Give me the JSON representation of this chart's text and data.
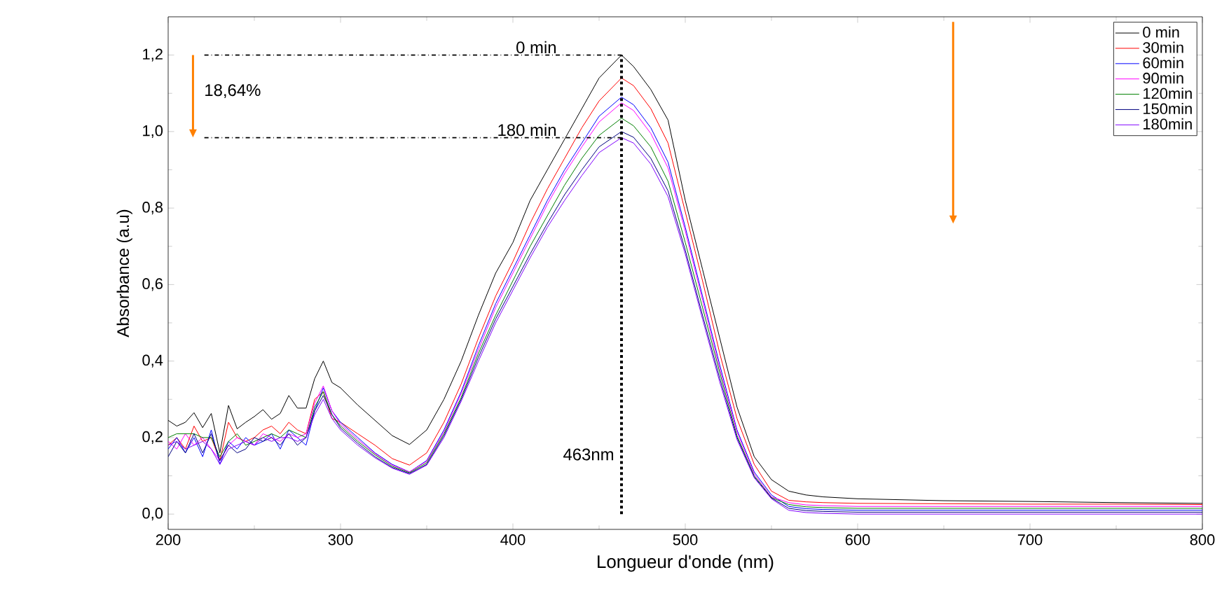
{
  "chart_data": {
    "type": "line",
    "xlabel": "Longueur d'onde (nm)",
    "ylabel": "Absorbance (a.u)",
    "x": [
      200,
      205,
      210,
      215,
      220,
      225,
      230,
      235,
      240,
      245,
      250,
      255,
      260,
      265,
      270,
      275,
      280,
      285,
      290,
      295,
      300,
      310,
      320,
      330,
      340,
      350,
      360,
      370,
      380,
      390,
      400,
      410,
      420,
      430,
      440,
      450,
      463,
      470,
      480,
      490,
      500,
      510,
      520,
      530,
      540,
      550,
      560,
      570,
      580,
      600,
      650,
      700,
      750,
      800
    ],
    "series": [
      {
        "name": "0 min",
        "color": "#000000",
        "values": [
          0.245,
          0.23,
          0.24,
          0.265,
          0.226,
          0.263,
          0.16,
          0.284,
          0.223,
          0.24,
          0.255,
          0.273,
          0.248,
          0.263,
          0.31,
          0.277,
          0.277,
          0.354,
          0.4,
          0.344,
          0.33,
          0.285,
          0.245,
          0.205,
          0.182,
          0.22,
          0.3,
          0.4,
          0.52,
          0.63,
          0.71,
          0.82,
          0.9,
          0.98,
          1.06,
          1.14,
          1.2,
          1.17,
          1.11,
          1.03,
          0.82,
          0.64,
          0.46,
          0.28,
          0.15,
          0.09,
          0.06,
          0.05,
          0.045,
          0.04,
          0.035,
          0.033,
          0.03,
          0.028
        ]
      },
      {
        "name": "30min",
        "color": "#ff0000",
        "values": [
          0.18,
          0.2,
          0.17,
          0.23,
          0.19,
          0.2,
          0.14,
          0.24,
          0.2,
          0.19,
          0.2,
          0.22,
          0.23,
          0.21,
          0.24,
          0.22,
          0.21,
          0.3,
          0.32,
          0.25,
          0.24,
          0.21,
          0.18,
          0.145,
          0.128,
          0.16,
          0.24,
          0.34,
          0.46,
          0.57,
          0.66,
          0.76,
          0.85,
          0.93,
          1.01,
          1.08,
          1.14,
          1.12,
          1.06,
          0.97,
          0.79,
          0.61,
          0.42,
          0.25,
          0.13,
          0.06,
          0.036,
          0.032,
          0.03,
          0.028,
          0.027,
          0.026,
          0.026,
          0.025
        ]
      },
      {
        "name": "60min",
        "color": "#0000ff",
        "values": [
          0.17,
          0.2,
          0.16,
          0.2,
          0.15,
          0.22,
          0.13,
          0.19,
          0.17,
          0.2,
          0.18,
          0.19,
          0.21,
          0.17,
          0.22,
          0.2,
          0.18,
          0.27,
          0.33,
          0.27,
          0.24,
          0.2,
          0.16,
          0.13,
          0.11,
          0.14,
          0.22,
          0.32,
          0.44,
          0.55,
          0.64,
          0.73,
          0.82,
          0.9,
          0.97,
          1.04,
          1.09,
          1.07,
          1.01,
          0.92,
          0.75,
          0.57,
          0.39,
          0.22,
          0.11,
          0.05,
          0.02,
          0.014,
          0.012,
          0.01,
          0.01,
          0.01,
          0.01,
          0.01
        ]
      },
      {
        "name": "90min",
        "color": "#ff00ff",
        "values": [
          0.19,
          0.17,
          0.21,
          0.18,
          0.2,
          0.17,
          0.14,
          0.18,
          0.2,
          0.19,
          0.18,
          0.21,
          0.2,
          0.19,
          0.21,
          0.2,
          0.21,
          0.29,
          0.335,
          0.27,
          0.235,
          0.195,
          0.158,
          0.128,
          0.11,
          0.138,
          0.215,
          0.315,
          0.43,
          0.54,
          0.63,
          0.72,
          0.81,
          0.89,
          0.96,
          1.025,
          1.075,
          1.055,
          0.995,
          0.905,
          0.74,
          0.56,
          0.38,
          0.215,
          0.105,
          0.045,
          0.03,
          0.024,
          0.022,
          0.02,
          0.02,
          0.02,
          0.02,
          0.02
        ]
      },
      {
        "name": "120min",
        "color": "#008000",
        "values": [
          0.2,
          0.21,
          0.21,
          0.21,
          0.2,
          0.2,
          0.15,
          0.19,
          0.21,
          0.18,
          0.19,
          0.2,
          0.21,
          0.2,
          0.22,
          0.21,
          0.2,
          0.28,
          0.32,
          0.26,
          0.23,
          0.19,
          0.155,
          0.125,
          0.108,
          0.134,
          0.21,
          0.305,
          0.42,
          0.52,
          0.61,
          0.7,
          0.78,
          0.86,
          0.93,
          0.99,
          1.035,
          1.015,
          0.96,
          0.87,
          0.71,
          0.54,
          0.37,
          0.205,
          0.1,
          0.043,
          0.025,
          0.019,
          0.017,
          0.015,
          0.015,
          0.015,
          0.015,
          0.015
        ]
      },
      {
        "name": "150min",
        "color": "#000080",
        "values": [
          0.15,
          0.19,
          0.16,
          0.21,
          0.16,
          0.21,
          0.14,
          0.18,
          0.16,
          0.17,
          0.2,
          0.19,
          0.2,
          0.18,
          0.21,
          0.18,
          0.2,
          0.27,
          0.31,
          0.26,
          0.225,
          0.185,
          0.15,
          0.122,
          0.106,
          0.13,
          0.205,
          0.3,
          0.41,
          0.51,
          0.595,
          0.68,
          0.76,
          0.835,
          0.9,
          0.96,
          1.0,
          0.985,
          0.93,
          0.845,
          0.69,
          0.52,
          0.355,
          0.2,
          0.097,
          0.042,
          0.015,
          0.009,
          0.007,
          0.005,
          0.005,
          0.005,
          0.005,
          0.005
        ]
      },
      {
        "name": "180min",
        "color": "#8000ff",
        "values": [
          0.18,
          0.19,
          0.17,
          0.18,
          0.19,
          0.17,
          0.13,
          0.17,
          0.18,
          0.19,
          0.18,
          0.2,
          0.19,
          0.2,
          0.2,
          0.19,
          0.2,
          0.26,
          0.3,
          0.25,
          0.22,
          0.18,
          0.147,
          0.12,
          0.104,
          0.128,
          0.2,
          0.295,
          0.4,
          0.5,
          0.585,
          0.67,
          0.75,
          0.82,
          0.885,
          0.945,
          0.984,
          0.97,
          0.915,
          0.83,
          0.68,
          0.51,
          0.345,
          0.195,
          0.095,
          0.04,
          0.01,
          0.004,
          0.002,
          0.0,
          0.0,
          0.0,
          0.0,
          0.0
        ]
      }
    ],
    "xlim": [
      200,
      800
    ],
    "xticks": [
      200,
      300,
      400,
      500,
      600,
      700,
      800
    ],
    "ylim": [
      -0.04,
      1.3
    ],
    "yticks": [
      {
        "value": 0,
        "label": "0,0"
      },
      {
        "value": 0.2,
        "label": "0,2"
      },
      {
        "value": 0.4,
        "label": "0,4"
      },
      {
        "value": 0.6,
        "label": "0,6"
      },
      {
        "value": 0.8,
        "label": "0,8"
      },
      {
        "value": 1.0,
        "label": "1,0"
      },
      {
        "value": 1.2,
        "label": "1,2"
      }
    ],
    "ref_lines": [
      {
        "axis": "y",
        "value": 1.2,
        "label": "0 min",
        "color": "#000000",
        "line_style": "dashed"
      },
      {
        "axis": "y",
        "value": 0.984,
        "label": "180 min",
        "color": "#000000",
        "line_style": "dashed"
      },
      {
        "axis": "x",
        "value": 463,
        "label": "463nm",
        "color": "#000000",
        "line_style": "dotted"
      }
    ],
    "annotations": [
      "18,64%"
    ],
    "legend": "top right",
    "line_style": "solid"
  }
}
